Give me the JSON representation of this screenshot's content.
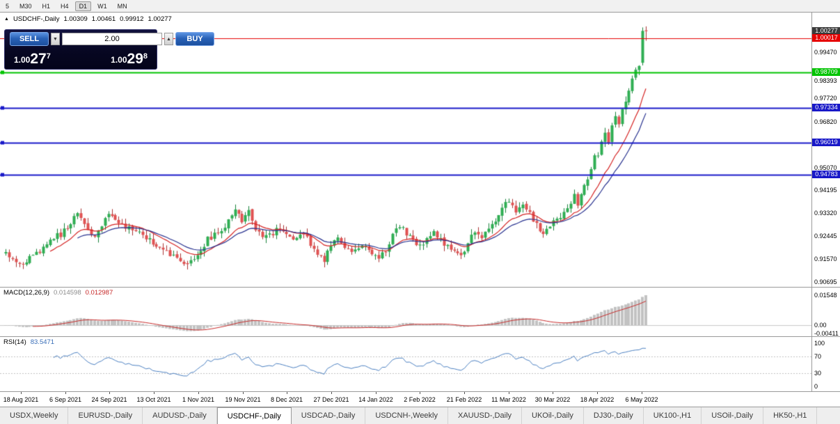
{
  "toolbar": {
    "periods": [
      "5",
      "M30",
      "H1",
      "H4",
      "D1",
      "W1",
      "MN"
    ],
    "active": "D1"
  },
  "chart_header": {
    "collapse_icon": "▲",
    "symbol": "USDCHF-,Daily",
    "open": "1.00309",
    "high": "1.00461",
    "low": "0.99912",
    "close": "1.00277"
  },
  "trade_widget": {
    "sell_label": "SELL",
    "buy_label": "BUY",
    "volume": "2.00",
    "bid": {
      "main": "1.00",
      "pips": "27",
      "frac": "7"
    },
    "ask": {
      "main": "1.00",
      "pips": "29",
      "frac": "8"
    }
  },
  "tabs": {
    "active_index": 3,
    "items": [
      "USDX,Weekly",
      "EURUSD-,Daily",
      "AUDUSD-,Daily",
      "USDCHF-,Daily",
      "USDCAD-,Daily",
      "USDCNH-,Weekly",
      "XAUUSD-,Daily",
      "UKOil-,Daily",
      "DJ30-,Daily",
      "UK100-,H1",
      "USOil-,Daily",
      "HK50-,H1"
    ]
  },
  "chart_data": {
    "type": "candlestick",
    "title": "USDCHF-,Daily",
    "last_bar": {
      "open": 1.00309,
      "high": 1.00461,
      "low": 0.99912,
      "close": 1.00277
    },
    "bar_count": 188,
    "y_visible_range": [
      0.9051,
      1.0099
    ],
    "y_axis_ticks": [
      "0.99470",
      "0.98393",
      "0.97720",
      "0.96820",
      "0.95070",
      "0.94195",
      "0.93320",
      "0.92445",
      "0.91570",
      "0.90695"
    ],
    "x_tick_labels": [
      "18 Aug 2021",
      "6 Sep 2021",
      "24 Sep 2021",
      "13 Oct 2021",
      "1 Nov 2021",
      "19 Nov 2021",
      "8 Dec 2021",
      "27 Dec 2021",
      "14 Jan 2022",
      "2 Feb 2022",
      "21 Feb 2022",
      "11 Mar 2022",
      "30 Mar 2022",
      "18 Apr 2022",
      "6 May 2022"
    ],
    "last_price_marker": {
      "label": "1.00277",
      "price": 1.00277,
      "bg": "#3a3a3a"
    },
    "horizontal_lines": [
      {
        "label": "1.00017",
        "price": 1.00017,
        "color": "#e60000",
        "width": 1,
        "handles": false
      },
      {
        "label": "0.98709",
        "price": 0.98709,
        "color": "#00c400",
        "width": 2,
        "handles": true
      },
      {
        "label": "0.97334",
        "price": 0.97334,
        "color": "#1818c8",
        "width": 2,
        "handles": true
      },
      {
        "label": "0.96019",
        "price": 0.96019,
        "color": "#1818c8",
        "width": 2,
        "handles": true
      },
      {
        "label": "0.94783",
        "price": 0.94783,
        "color": "#1818c8",
        "width": 2,
        "handles": true
      }
    ],
    "candle_colors": {
      "up": "#2fae53",
      "up_border": "#17803a",
      "down": "#e05252",
      "down_border": "#a93030"
    },
    "moving_averages": [
      {
        "period": 13,
        "color": "#d42222"
      },
      {
        "period": 21,
        "color": "#28328f"
      }
    ],
    "close_keypoints": [
      [
        0,
        0.9195
      ],
      [
        2,
        0.9152
      ],
      [
        4,
        0.9128
      ],
      [
        7,
        0.9158
      ],
      [
        10,
        0.9185
      ],
      [
        13,
        0.9232
      ],
      [
        16,
        0.9252
      ],
      [
        19,
        0.9298
      ],
      [
        21,
        0.934
      ],
      [
        23,
        0.9288
      ],
      [
        26,
        0.9242
      ],
      [
        28,
        0.9282
      ],
      [
        30,
        0.9325
      ],
      [
        33,
        0.9296
      ],
      [
        36,
        0.9272
      ],
      [
        39,
        0.9252
      ],
      [
        42,
        0.9228
      ],
      [
        45,
        0.9202
      ],
      [
        48,
        0.9176
      ],
      [
        51,
        0.9148
      ],
      [
        53,
        0.9136
      ],
      [
        56,
        0.9178
      ],
      [
        59,
        0.9232
      ],
      [
        62,
        0.9258
      ],
      [
        65,
        0.9302
      ],
      [
        67,
        0.9338
      ],
      [
        69,
        0.9306
      ],
      [
        71,
        0.9336
      ],
      [
        73,
        0.9268
      ],
      [
        76,
        0.924
      ],
      [
        79,
        0.9268
      ],
      [
        82,
        0.925
      ],
      [
        85,
        0.9236
      ],
      [
        87,
        0.9258
      ],
      [
        89,
        0.9214
      ],
      [
        91,
        0.9178
      ],
      [
        93,
        0.9152
      ],
      [
        95,
        0.9214
      ],
      [
        97,
        0.9238
      ],
      [
        99,
        0.9198
      ],
      [
        101,
        0.9174
      ],
      [
        103,
        0.9194
      ],
      [
        105,
        0.9212
      ],
      [
        107,
        0.9182
      ],
      [
        109,
        0.9152
      ],
      [
        111,
        0.9192
      ],
      [
        113,
        0.9252
      ],
      [
        115,
        0.9288
      ],
      [
        117,
        0.9258
      ],
      [
        119,
        0.9224
      ],
      [
        121,
        0.9204
      ],
      [
        123,
        0.9234
      ],
      [
        125,
        0.9254
      ],
      [
        127,
        0.9234
      ],
      [
        129,
        0.9204
      ],
      [
        131,
        0.9184
      ],
      [
        133,
        0.9168
      ],
      [
        135,
        0.9218
      ],
      [
        137,
        0.9262
      ],
      [
        139,
        0.9242
      ],
      [
        141,
        0.9278
      ],
      [
        143,
        0.9308
      ],
      [
        145,
        0.9352
      ],
      [
        147,
        0.9378
      ],
      [
        149,
        0.9338
      ],
      [
        151,
        0.9362
      ],
      [
        153,
        0.9328
      ],
      [
        155,
        0.9288
      ],
      [
        157,
        0.9254
      ],
      [
        159,
        0.9284
      ],
      [
        161,
        0.9308
      ],
      [
        163,
        0.9332
      ],
      [
        165,
        0.9362
      ],
      [
        166,
        0.9398
      ],
      [
        167,
        0.9368
      ],
      [
        168,
        0.9408
      ],
      [
        170,
        0.9458
      ],
      [
        171,
        0.9508
      ],
      [
        172,
        0.9556
      ],
      [
        173,
        0.9542
      ],
      [
        174,
        0.9598
      ],
      [
        175,
        0.9638
      ],
      [
        176,
        0.9608
      ],
      [
        177,
        0.9658
      ],
      [
        178,
        0.9698
      ],
      [
        179,
        0.9678
      ],
      [
        180,
        0.9728
      ],
      [
        181,
        0.9768
      ],
      [
        182,
        0.9808
      ],
      [
        183,
        0.9838
      ],
      [
        184,
        0.9882
      ],
      [
        185,
        0.9902
      ],
      [
        186,
        1.0029
      ],
      [
        187,
        1.00277
      ]
    ],
    "indicators": [
      {
        "label": "MACD(12,26,9)",
        "value_main": "0.014598",
        "value_signal": "0.012987",
        "axis_labels": [
          "0.01548",
          "0.00",
          "-0.00411"
        ],
        "histogram_color": "#c2c2c2",
        "signal_color": "#c62828"
      },
      {
        "label": "RSI(14)",
        "value": "83.5471",
        "axis_labels": [
          "100",
          "70",
          "30",
          "0"
        ],
        "levels": [
          70,
          30
        ],
        "line_color": "#4a7fc0"
      }
    ]
  }
}
